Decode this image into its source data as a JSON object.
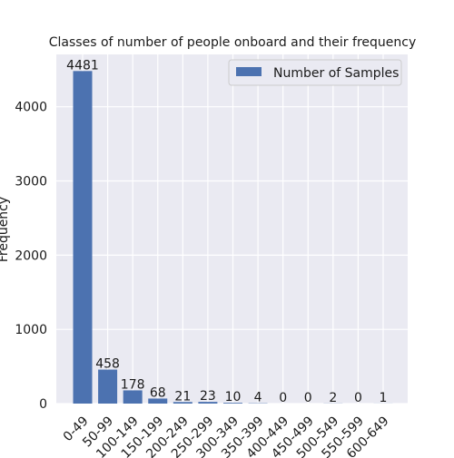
{
  "chart_data": {
    "type": "bar",
    "title": "Classes of number of people onboard and their frequency",
    "xlabel": "",
    "ylabel": "Frequency",
    "categories": [
      "0-49",
      "50-99",
      "100-149",
      "150-199",
      "200-249",
      "250-299",
      "300-349",
      "350-399",
      "400-449",
      "450-499",
      "500-549",
      "550-599",
      "600-649"
    ],
    "series": [
      {
        "name": "Number of Samples",
        "values": [
          4481,
          458,
          178,
          68,
          21,
          23,
          10,
          4,
          0,
          0,
          2,
          0,
          1
        ],
        "color": "#4c72b0"
      }
    ],
    "data_labels": [
      "4481",
      "458",
      "178",
      "68",
      "21",
      "23",
      "10",
      "4",
      "0",
      "0",
      "2",
      "0",
      "1"
    ],
    "yticks": [
      0,
      1000,
      2000,
      3000,
      4000
    ],
    "ylim": [
      0,
      4705
    ],
    "grid": true,
    "legend_position": "top-right",
    "colors": {
      "plot_background": "#eaeaf2",
      "grid": "#ffffff"
    }
  }
}
